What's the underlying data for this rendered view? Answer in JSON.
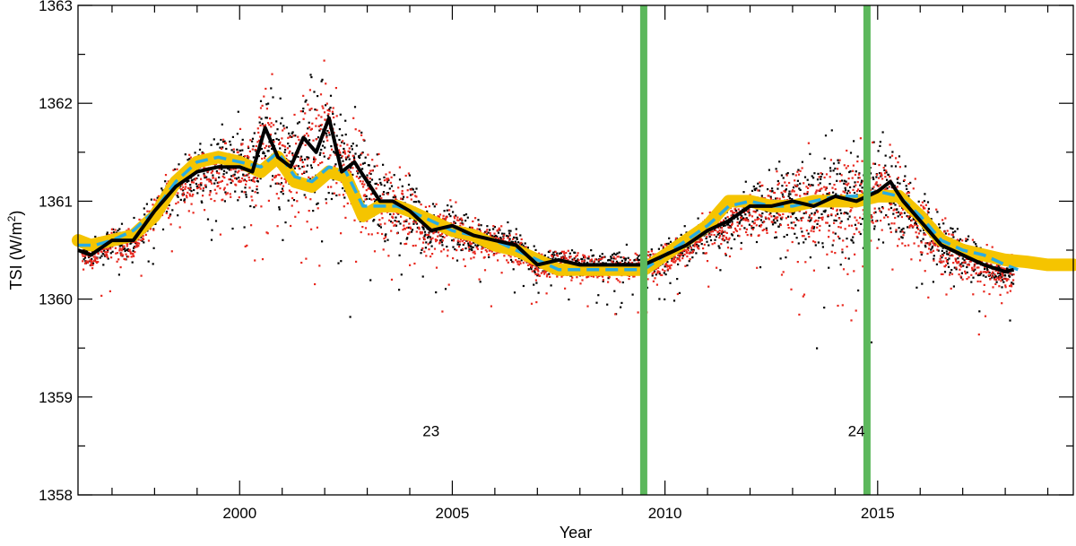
{
  "chart_data": {
    "type": "scatter",
    "xlabel": "Year",
    "ylabel": "TSI (W/m²)",
    "ylabel_main": "TSI (W/m",
    "ylabel_sup": "2",
    "ylabel_close": ")",
    "xlim": [
      1996.2,
      2019.6
    ],
    "ylim": [
      1358.0,
      1363.0
    ],
    "xticks": [
      2000,
      2005,
      2010,
      2015
    ],
    "xtick_labels": [
      "2000",
      "2005",
      "2010",
      "2015"
    ],
    "yticks": [
      1358,
      1359,
      1360,
      1361,
      1362,
      1363
    ],
    "ytick_labels": [
      "1358",
      "1359",
      "1360",
      "1361",
      "1362",
      "1363"
    ],
    "grid": false,
    "annotations": [
      {
        "text": "23",
        "x": 2004.5,
        "y": 1358.6
      },
      {
        "text": "24",
        "x": 2014.5,
        "y": 1358.6
      }
    ],
    "vertical_markers": {
      "color": "#5cb85c",
      "x": [
        2009.5,
        2014.75
      ]
    },
    "colors": {
      "black_line": "#000000",
      "yellow_band": "#f5c400",
      "cyan_dashed": "#29abe2",
      "red_points": "#e8281f",
      "black_points": "#000000"
    },
    "series": [
      {
        "style": "black-smooth-line",
        "x": [
          1996.2,
          1996.5,
          1997.0,
          1997.5,
          1998.0,
          1998.5,
          1999.0,
          1999.5,
          2000.0,
          2000.3,
          2000.6,
          2000.9,
          2001.2,
          2001.5,
          2001.8,
          2002.1,
          2002.4,
          2002.7,
          2003.0,
          2003.3,
          2003.6,
          2004.0,
          2004.5,
          2005.0,
          2005.5,
          2006.0,
          2006.5,
          2007.0,
          2007.5,
          2008.0,
          2008.5,
          2009.0,
          2009.5,
          2010.0,
          2010.5,
          2011.0,
          2011.5,
          2012.0,
          2012.5,
          2013.0,
          2013.5,
          2014.0,
          2014.5,
          2015.0,
          2015.3,
          2015.6,
          2016.0,
          2016.5,
          2017.0,
          2017.5,
          2018.0,
          2018.2
        ],
        "y": [
          1360.5,
          1360.45,
          1360.6,
          1360.6,
          1360.9,
          1361.15,
          1361.3,
          1361.35,
          1361.35,
          1361.3,
          1361.75,
          1361.45,
          1361.35,
          1361.65,
          1361.5,
          1361.85,
          1361.3,
          1361.4,
          1361.2,
          1361.0,
          1361.0,
          1360.9,
          1360.7,
          1360.75,
          1360.65,
          1360.6,
          1360.55,
          1360.35,
          1360.4,
          1360.35,
          1360.35,
          1360.35,
          1360.35,
          1360.45,
          1360.55,
          1360.7,
          1360.8,
          1360.95,
          1360.95,
          1361.0,
          1360.95,
          1361.05,
          1361.0,
          1361.1,
          1361.2,
          1361.0,
          1360.8,
          1360.55,
          1360.45,
          1360.35,
          1360.28,
          1360.3
        ]
      },
      {
        "style": "yellow-band",
        "x": [
          1996.2,
          1996.5,
          1997.0,
          1997.5,
          1998.0,
          1998.5,
          1999.0,
          1999.5,
          2000.0,
          2000.5,
          2000.9,
          2001.3,
          2001.7,
          2002.1,
          2002.5,
          2002.9,
          2003.3,
          2003.7,
          2004.0,
          2004.5,
          2005.0,
          2005.5,
          2006.0,
          2006.5,
          2007.0,
          2007.5,
          2008.0,
          2008.5,
          2009.0,
          2009.5,
          2010.0,
          2010.5,
          2011.0,
          2011.5,
          2012.0,
          2012.5,
          2013.0,
          2013.5,
          2014.0,
          2014.5,
          2015.0,
          2015.5,
          2016.0,
          2016.5,
          2017.0,
          2017.5,
          2018.0,
          2018.5,
          2019.0,
          2019.6
        ],
        "y": [
          1360.6,
          1360.55,
          1360.6,
          1360.65,
          1360.85,
          1361.2,
          1361.4,
          1361.45,
          1361.4,
          1361.3,
          1361.45,
          1361.2,
          1361.15,
          1361.3,
          1361.25,
          1360.85,
          1360.95,
          1360.95,
          1360.9,
          1360.8,
          1360.7,
          1360.65,
          1360.55,
          1360.5,
          1360.4,
          1360.3,
          1360.3,
          1360.3,
          1360.3,
          1360.3,
          1360.45,
          1360.6,
          1360.75,
          1361.0,
          1361.0,
          1360.95,
          1360.95,
          1361.0,
          1361.0,
          1361.0,
          1361.05,
          1361.05,
          1360.85,
          1360.6,
          1360.5,
          1360.45,
          1360.4,
          1360.38,
          1360.35,
          1360.35
        ]
      },
      {
        "style": "cyan-dashed-line",
        "x": [
          1996.2,
          1996.6,
          1997.0,
          1997.5,
          1998.0,
          1998.5,
          1999.0,
          1999.5,
          2000.0,
          2000.5,
          2000.9,
          2001.3,
          2001.7,
          2002.1,
          2002.5,
          2002.9,
          2003.3,
          2003.7,
          2004.0,
          2004.5,
          2005.0,
          2005.5,
          2006.0,
          2006.5,
          2007.0,
          2007.5,
          2008.0,
          2008.5,
          2009.0,
          2009.5,
          2010.0,
          2010.5,
          2011.0,
          2011.5,
          2012.0,
          2012.5,
          2013.0,
          2013.5,
          2014.0,
          2014.5,
          2015.0,
          2015.5,
          2016.0,
          2016.5,
          2017.0,
          2017.5,
          2018.0,
          2018.3
        ],
        "y": [
          1360.55,
          1360.55,
          1360.6,
          1360.7,
          1360.9,
          1361.2,
          1361.4,
          1361.45,
          1361.4,
          1361.35,
          1361.5,
          1361.25,
          1361.2,
          1361.35,
          1361.3,
          1360.95,
          1360.95,
          1360.95,
          1360.9,
          1360.8,
          1360.7,
          1360.65,
          1360.6,
          1360.5,
          1360.4,
          1360.3,
          1360.3,
          1360.3,
          1360.3,
          1360.3,
          1360.45,
          1360.6,
          1360.75,
          1360.95,
          1361.0,
          1360.95,
          1360.95,
          1361.0,
          1361.05,
          1361.05,
          1361.1,
          1361.05,
          1360.85,
          1360.6,
          1360.5,
          1360.45,
          1360.35,
          1360.3
        ]
      }
    ]
  }
}
